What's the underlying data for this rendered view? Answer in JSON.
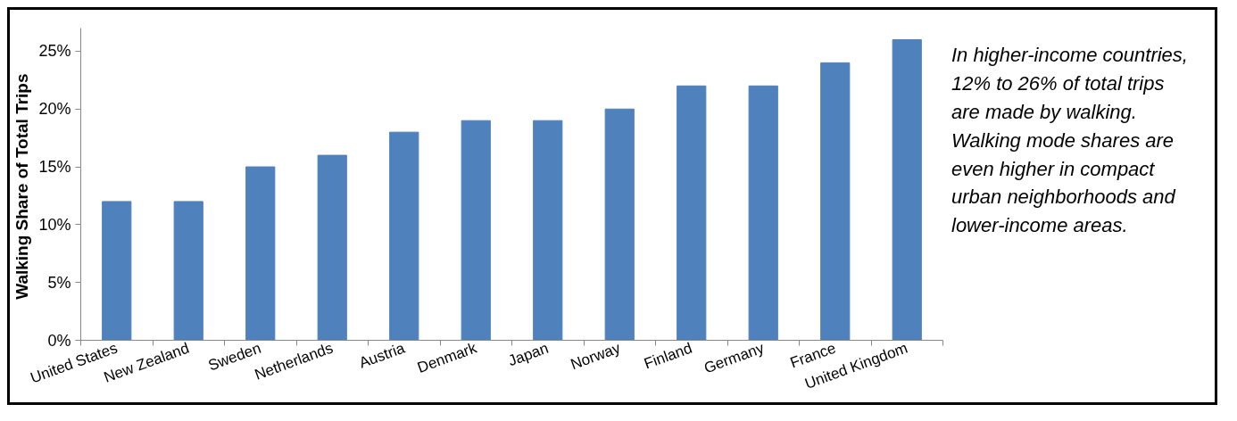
{
  "chart_data": {
    "type": "bar",
    "ylabel": "Walking  Share of Total Trips",
    "categories": [
      "United States",
      "New Zealand",
      "Sweden",
      "Netherlands",
      "Austria",
      "Denmark",
      "Japan",
      "Norway",
      "Finland",
      "Germany",
      "France",
      "United Kingdom"
    ],
    "values": [
      12,
      12,
      15,
      16,
      18,
      19,
      19,
      20,
      22,
      22,
      24,
      26
    ],
    "color": "#4f81bd",
    "ylim": [
      0,
      27
    ],
    "yticks": [
      {
        "value": 0,
        "label": "0%"
      },
      {
        "value": 5,
        "label": "5%"
      },
      {
        "value": 10,
        "label": "10%"
      },
      {
        "value": 15,
        "label": "15%"
      },
      {
        "value": 20,
        "label": "20%"
      },
      {
        "value": 25,
        "label": "25%"
      }
    ],
    "grid": false,
    "annotations": [
      "In higher-income countries, 12% to 26% of total trips are made by walking. Walking mode shares are even higher in compact urban neighborhoods and lower-income areas."
    ]
  }
}
